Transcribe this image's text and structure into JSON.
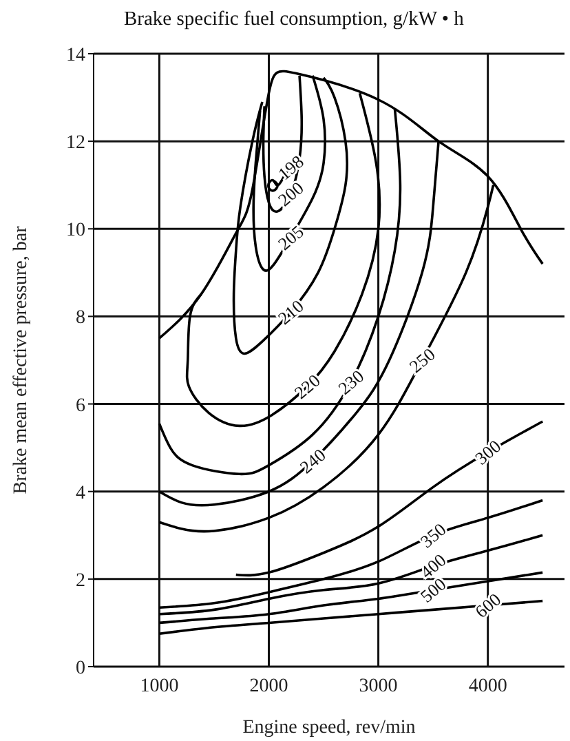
{
  "chart_data": {
    "type": "line",
    "title": "Brake specific fuel consumption, g/kW • h",
    "xlabel": "Engine speed, rev/min",
    "ylabel": "Brake mean effective pressure, bar",
    "xlim": [
      400,
      4700
    ],
    "ylim": [
      0,
      14
    ],
    "xticks": [
      1000,
      2000,
      3000,
      4000
    ],
    "yticks": [
      0,
      2,
      4,
      6,
      8,
      10,
      12,
      14
    ],
    "grid": true,
    "marker": "none",
    "line_style": "solid",
    "series": [
      {
        "color": "#000000",
        "x": [
          1000,
          1380,
          1700,
          1850,
          2000,
          2250,
          3000,
          3550,
          4000,
          4300,
          4500
        ],
        "values": [
          7.5,
          8.5,
          9.9,
          10.9,
          13.1,
          13.55,
          12.95,
          12.0,
          11.2,
          10.0,
          9.2
        ]
      },
      {
        "color": "#000000",
        "x": [
          2037,
          2080,
          2037,
          1995,
          2037,
          2080,
          2140,
          2200
        ],
        "values": [
          11.11,
          10.99,
          10.87,
          10.99,
          11.11,
          10.99,
          11.2,
          11.4
        ]
      },
      {
        "color": "#000000",
        "x": [
          1960,
          1950,
          1960,
          2000,
          2080,
          2200,
          2280,
          2300,
          2280
        ],
        "values": [
          12.8,
          12.0,
          11.2,
          10.6,
          10.4,
          10.8,
          11.6,
          12.5,
          13.5
        ]
      },
      {
        "color": "#000000",
        "x": [
          1920,
          1880,
          1860,
          1880,
          1950,
          2050,
          2200,
          2400,
          2500,
          2500,
          2400
        ],
        "values": [
          12.7,
          11.5,
          10.5,
          9.6,
          9.07,
          9.2,
          9.8,
          10.7,
          11.5,
          12.5,
          13.5
        ]
      },
      {
        "color": "#000000",
        "x": [
          1940,
          1850,
          1740,
          1700,
          1680,
          1700,
          1780,
          1950,
          2200,
          2450,
          2600,
          2700,
          2700,
          2600,
          2500
        ],
        "values": [
          12.9,
          12.0,
          10.5,
          9.5,
          8.5,
          7.5,
          7.15,
          7.45,
          8.1,
          9.0,
          10.0,
          11.0,
          12.0,
          13.0,
          13.45
        ]
      },
      {
        "color": "#000000",
        "x": [
          1380,
          1280,
          1260,
          1270,
          1450,
          1730,
          2030,
          2350,
          2600,
          2850,
          3000,
          2980,
          2830
        ],
        "values": [
          8.5,
          8.0,
          7.0,
          6.4,
          5.8,
          5.5,
          5.75,
          6.4,
          7.2,
          8.5,
          10.0,
          11.5,
          13.1
        ]
      },
      {
        "color": "#000000",
        "x": [
          1000,
          1100,
          1300,
          1730,
          2000,
          2400,
          2750,
          3000,
          3150,
          3200,
          3150
        ],
        "values": [
          5.55,
          5.0,
          4.6,
          4.4,
          4.6,
          5.3,
          6.5,
          8.0,
          9.5,
          11.0,
          12.75
        ]
      },
      {
        "color": "#000000",
        "x": [
          1000,
          1200,
          1500,
          2000,
          2400,
          2800,
          3100,
          3400,
          3500,
          3550
        ],
        "values": [
          4.0,
          3.75,
          3.7,
          4.0,
          4.7,
          5.8,
          7.0,
          9.0,
          10.5,
          12.0
        ]
      },
      {
        "color": "#000000",
        "x": [
          1000,
          1200,
          1500,
          2000,
          2500,
          3000,
          3400,
          3800,
          4000,
          4050
        ],
        "values": [
          3.3,
          3.15,
          3.1,
          3.4,
          4.1,
          5.3,
          7.0,
          9.0,
          10.5,
          11.0
        ]
      },
      {
        "color": "#000000",
        "x": [
          1700,
          2000,
          2500,
          3000,
          3500,
          4000,
          4500
        ],
        "values": [
          2.1,
          2.15,
          2.6,
          3.2,
          4.1,
          4.9,
          5.6
        ]
      },
      {
        "color": "#000000",
        "x": [
          1000,
          1500,
          2000,
          2500,
          3000,
          3500,
          4000,
          4500
        ],
        "values": [
          1.35,
          1.45,
          1.7,
          2.0,
          2.4,
          3.0,
          3.4,
          3.8
        ]
      },
      {
        "color": "#000000",
        "x": [
          1000,
          1500,
          2000,
          2500,
          3000,
          3500,
          4000,
          4500
        ],
        "values": [
          1.2,
          1.3,
          1.55,
          1.75,
          1.9,
          2.3,
          2.65,
          3.0
        ]
      },
      {
        "color": "#000000",
        "x": [
          1000,
          1500,
          2000,
          2500,
          3000,
          3500,
          4000,
          4500
        ],
        "values": [
          1.0,
          1.1,
          1.2,
          1.4,
          1.55,
          1.75,
          1.95,
          2.15
        ]
      },
      {
        "color": "#000000",
        "x": [
          1000,
          1500,
          2000,
          2500,
          3000,
          3500,
          4000,
          4500
        ],
        "values": [
          0.75,
          0.9,
          1.0,
          1.1,
          1.2,
          1.3,
          1.4,
          1.5
        ]
      }
    ],
    "annotations": [
      {
        "text": "198",
        "x": 2200,
        "y": 11.4
      },
      {
        "text": "200",
        "x": 2200,
        "y": 10.8
      },
      {
        "text": "205",
        "x": 2200,
        "y": 9.8
      },
      {
        "text": "210",
        "x": 2200,
        "y": 8.1
      },
      {
        "text": "220",
        "x": 2350,
        "y": 6.4
      },
      {
        "text": "230",
        "x": 2750,
        "y": 6.5
      },
      {
        "text": "240",
        "x": 2400,
        "y": 4.7
      },
      {
        "text": "250",
        "x": 3400,
        "y": 7.0
      },
      {
        "text": "300",
        "x": 4000,
        "y": 4.9
      },
      {
        "text": "350",
        "x": 3500,
        "y": 3.0
      },
      {
        "text": "400",
        "x": 3500,
        "y": 2.3
      },
      {
        "text": "500",
        "x": 3500,
        "y": 1.75
      },
      {
        "text": "600",
        "x": 4000,
        "y": 1.4
      }
    ]
  }
}
